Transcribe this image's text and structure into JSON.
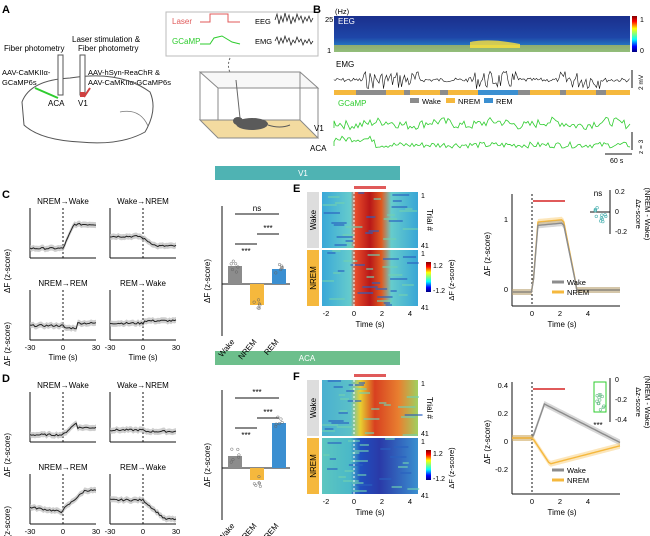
{
  "panels": {
    "A": "A",
    "B": "B",
    "C": "C",
    "D": "D",
    "E": "E",
    "F": "F"
  },
  "colors": {
    "wake": "#8c8c8c",
    "nrem": "#f5b83d",
    "rem": "#3b8fd1",
    "gcamp": "#2ecc2e",
    "laser": "#e05a5a",
    "v1_bar": "#4fb3b3",
    "aca_bar": "#6dbf8c"
  },
  "A": {
    "fiber_photometry": "Fiber photometry",
    "laser_stim": "Laser stimulation &",
    "fiber_photometry2": "Fiber photometry",
    "virus_left_1": "AAV-CaMKIIα-",
    "virus_left_2": "GCaMP6s",
    "virus_right_1": "AAV-hSyn-ReaChR &",
    "virus_right_2": "AAV-CaMKIIα-GCaMP6s",
    "aca": "ACA",
    "v1": "V1",
    "laser": "Laser",
    "gcamp": "GCaMP",
    "eeg": "EEG",
    "emg": "EMG"
  },
  "B": {
    "hz": "(Hz)",
    "f_top": "25",
    "f_bot": "1",
    "eeg": "EEG",
    "cb_top": "1",
    "cb_bot": "0",
    "emg": "EMG",
    "emg_scale": "2 mV",
    "legend": [
      "Wake",
      "NREM",
      "REM"
    ],
    "gcamp": "GCaMP",
    "v1": "V1",
    "aca": "ACA",
    "z_scale": "z = 3",
    "time_scale": "60 s"
  },
  "section_v1": "V1",
  "section_aca": "ACA",
  "transitions": [
    "NREM→Wake",
    "Wake→NREM",
    "NREM→REM",
    "REM→Wake"
  ],
  "C": {
    "ylabel": "ΔF (z-score)",
    "xlabel": "Time (s)",
    "ticks": [
      "-30",
      "0",
      "30"
    ],
    "bar_ylabel": "ΔF (z-score)",
    "bars": [
      "Wake",
      "NREM",
      "REM"
    ],
    "sig": [
      "ns",
      "***",
      "***"
    ]
  },
  "D": {
    "ylabel": "ΔF (z-score)",
    "xlabel": "Time (s)",
    "ticks": [
      "-30",
      "0",
      "30"
    ],
    "bar_ylabel": "ΔF (z-score)",
    "bars": [
      "Wake",
      "NREM",
      "REM"
    ],
    "sig": [
      "***",
      "***",
      "***"
    ]
  },
  "E": {
    "wake": "Wake",
    "nrem": "NREM",
    "trial": "Trial #",
    "t1": "1",
    "t41a": "41",
    "t41b": "41",
    "t1b": "1",
    "cb_top": "1.2",
    "cb_bot": "-1.2",
    "cb_label": "ΔF (z-score)",
    "xticks": [
      "-2",
      "0",
      "2",
      "4"
    ],
    "xlabel": "Time (s)",
    "ylabel": "ΔF (z-score)",
    "xticks2": [
      "0",
      "2",
      "4"
    ],
    "yticks2": [
      "1",
      "0"
    ],
    "inset_ticks": [
      "0.2",
      "0",
      "-0.2"
    ],
    "inset_label1": "Δz-score",
    "inset_label2": "(NREM - Wake)",
    "ns": "ns",
    "legend": [
      "Wake",
      "NREM"
    ]
  },
  "F": {
    "wake": "Wake",
    "nrem": "NREM",
    "trial": "Trial #",
    "t1": "1",
    "t41a": "41",
    "t41b": "41",
    "t1b": "1",
    "cb_top": "1.2",
    "cb_bot": "-1.2",
    "cb_label": "ΔF (z-score)",
    "xticks": [
      "-2",
      "0",
      "2",
      "4"
    ],
    "xlabel": "Time (s)",
    "ylabel": "ΔF (z-score)",
    "xticks2": [
      "0",
      "2",
      "4"
    ],
    "yticks2": [
      "0.4",
      "0.2",
      "0",
      "-0.2"
    ],
    "inset_ticks": [
      "0",
      "-0.2",
      "-0.4"
    ],
    "inset_label1": "Δz-score",
    "inset_label2": "(NREM - Wake)",
    "sig": "***",
    "legend": [
      "Wake",
      "NREM"
    ]
  }
}
